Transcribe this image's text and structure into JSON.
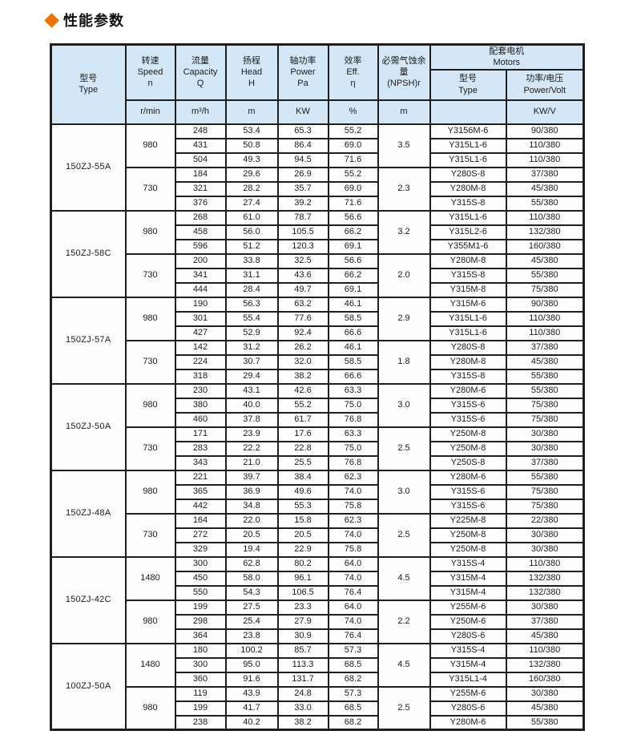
{
  "page_title": {
    "text": "性能参数"
  },
  "colors": {
    "accent": "#ee7200",
    "header_bg": "#d4e7f6",
    "border": "#1e1e1e"
  },
  "table": {
    "headers": {
      "model": {
        "zh": "型号",
        "en": "Type"
      },
      "speed": {
        "zh": "转速",
        "en": "Speed",
        "sub": "n",
        "unit": "r/min"
      },
      "capacity": {
        "zh": "流量",
        "en": "Capacity",
        "sub": "Q",
        "unit": "m³/h"
      },
      "head": {
        "zh": "扬程",
        "en": "Head",
        "sub": "H",
        "unit": "m"
      },
      "power": {
        "zh": "轴功率",
        "en": "Power",
        "sub": "Pa",
        "unit": "KW"
      },
      "eff": {
        "zh": "效率",
        "en": "Eff.",
        "sub": "η",
        "unit": "%"
      },
      "npsh": {
        "zh": "必需气蚀余量",
        "en": "(NPSH)r",
        "unit": "m"
      },
      "motors": {
        "zh": "配套电机",
        "en": "Motors"
      },
      "motor_type": {
        "zh": "型号",
        "en": "Type",
        "unit": ""
      },
      "motor_pv": {
        "zh": "功率/电压",
        "en": "Power/Volt",
        "unit": "KW/V"
      }
    },
    "sections": [
      {
        "model": "150ZJ-55A",
        "speed_groups": [
          {
            "speed": "980",
            "npsh": "3.5",
            "rows": [
              {
                "capacity": "248",
                "head": "53.4",
                "power": "65.3",
                "eff": "55.2",
                "motor": "Y3156M-6",
                "pv": "90/380"
              },
              {
                "capacity": "431",
                "head": "50.8",
                "power": "86.4",
                "eff": "69.0",
                "motor": "Y315L1-6",
                "pv": "110/380"
              },
              {
                "capacity": "504",
                "head": "49.3",
                "power": "94.5",
                "eff": "71.6",
                "motor": "Y315L1-6",
                "pv": "110/380"
              }
            ]
          },
          {
            "speed": "730",
            "npsh": "2.3",
            "rows": [
              {
                "capacity": "184",
                "head": "29.6",
                "power": "26.9",
                "eff": "55.2",
                "motor": "Y280S-8",
                "pv": "37/380"
              },
              {
                "capacity": "321",
                "head": "28.2",
                "power": "35.7",
                "eff": "69.0",
                "motor": "Y280M-8",
                "pv": "45/380"
              },
              {
                "capacity": "376",
                "head": "27.4",
                "power": "39.2",
                "eff": "71.6",
                "motor": "Y315S-8",
                "pv": "55/380"
              }
            ]
          }
        ]
      },
      {
        "model": "150ZJ-58C",
        "speed_groups": [
          {
            "speed": "980",
            "npsh": "3.2",
            "rows": [
              {
                "capacity": "268",
                "head": "61.0",
                "power": "78.7",
                "eff": "56.6",
                "motor": "Y315L1-6",
                "pv": "110/380"
              },
              {
                "capacity": "458",
                "head": "56.0",
                "power": "105.5",
                "eff": "66.2",
                "motor": "Y315L2-6",
                "pv": "132/380"
              },
              {
                "capacity": "596",
                "head": "51.2",
                "power": "120.3",
                "eff": "69.1",
                "motor": "Y355M1-6",
                "pv": "160/380"
              }
            ]
          },
          {
            "speed": "730",
            "npsh": "2.0",
            "rows": [
              {
                "capacity": "200",
                "head": "33.8",
                "power": "32.5",
                "eff": "56.6",
                "motor": "Y280M-8",
                "pv": "45/380"
              },
              {
                "capacity": "341",
                "head": "31.1",
                "power": "43.6",
                "eff": "66.2",
                "motor": "Y315S-8",
                "pv": "55/380"
              },
              {
                "capacity": "444",
                "head": "28.4",
                "power": "49.7",
                "eff": "69.1",
                "motor": "Y315M-8",
                "pv": "75/380"
              }
            ]
          }
        ]
      },
      {
        "model": "150ZJ-57A",
        "speed_groups": [
          {
            "speed": "980",
            "npsh": "2.9",
            "rows": [
              {
                "capacity": "190",
                "head": "56.3",
                "power": "63.2",
                "eff": "46.1",
                "motor": "Y315M-6",
                "pv": "90/380"
              },
              {
                "capacity": "301",
                "head": "55.4",
                "power": "77.6",
                "eff": "58.5",
                "motor": "Y315L1-6",
                "pv": "110/380"
              },
              {
                "capacity": "427",
                "head": "52.9",
                "power": "92.4",
                "eff": "66.6",
                "motor": "Y315L1-6",
                "pv": "110/380"
              }
            ]
          },
          {
            "speed": "730",
            "npsh": "1.8",
            "rows": [
              {
                "capacity": "142",
                "head": "31.2",
                "power": "26.2",
                "eff": "46.1",
                "motor": "Y280S-8",
                "pv": "37/380"
              },
              {
                "capacity": "224",
                "head": "30.7",
                "power": "32.0",
                "eff": "58.5",
                "motor": "Y280M-8",
                "pv": "45/380"
              },
              {
                "capacity": "318",
                "head": "29.4",
                "power": "38.2",
                "eff": "66.6",
                "motor": "Y315S-8",
                "pv": "55/380"
              }
            ]
          }
        ]
      },
      {
        "model": "150ZJ-50A",
        "speed_groups": [
          {
            "speed": "980",
            "npsh": "3.0",
            "rows": [
              {
                "capacity": "230",
                "head": "43.1",
                "power": "42.6",
                "eff": "63.3",
                "motor": "Y280M-6",
                "pv": "55/380"
              },
              {
                "capacity": "380",
                "head": "40.0",
                "power": "55.2",
                "eff": "75.0",
                "motor": "Y315S-6",
                "pv": "75/380"
              },
              {
                "capacity": "460",
                "head": "37.8",
                "power": "61.7",
                "eff": "76.8",
                "motor": "Y315S-6",
                "pv": "75/380"
              }
            ]
          },
          {
            "speed": "730",
            "npsh": "2.5",
            "rows": [
              {
                "capacity": "171",
                "head": "23.9",
                "power": "17.6",
                "eff": "63.3",
                "motor": "Y250M-8",
                "pv": "30/380"
              },
              {
                "capacity": "283",
                "head": "22.2",
                "power": "22.8",
                "eff": "75.0",
                "motor": "Y250M-8",
                "pv": "30/380"
              },
              {
                "capacity": "343",
                "head": "21.0",
                "power": "25.5",
                "eff": "76.8",
                "motor": "Y250S-8",
                "pv": "37/380"
              }
            ]
          }
        ]
      },
      {
        "model": "150ZJ-48A",
        "speed_groups": [
          {
            "speed": "980",
            "npsh": "3.0",
            "rows": [
              {
                "capacity": "221",
                "head": "39.7",
                "power": "38.4",
                "eff": "62.3",
                "motor": "Y280M-6",
                "pv": "55/380"
              },
              {
                "capacity": "365",
                "head": "36.9",
                "power": "49.6",
                "eff": "74.0",
                "motor": "Y315S-6",
                "pv": "75/380"
              },
              {
                "capacity": "442",
                "head": "34.8",
                "power": "55.3",
                "eff": "75.8",
                "motor": "Y315S-6",
                "pv": "75/380"
              }
            ]
          },
          {
            "speed": "730",
            "npsh": "2.5",
            "rows": [
              {
                "capacity": "164",
                "head": "22.0",
                "power": "15.8",
                "eff": "62.3",
                "motor": "Y225M-8",
                "pv": "22/380"
              },
              {
                "capacity": "272",
                "head": "20.5",
                "power": "20.5",
                "eff": "74.0",
                "motor": "Y250M-8",
                "pv": "30/380"
              },
              {
                "capacity": "329",
                "head": "19.4",
                "power": "22.9",
                "eff": "75.8",
                "motor": "Y250M-8",
                "pv": "30/380"
              }
            ]
          }
        ]
      },
      {
        "model": "150ZJ-42C",
        "speed_groups": [
          {
            "speed": "1480",
            "npsh": "4.5",
            "rows": [
              {
                "capacity": "300",
                "head": "62.8",
                "power": "80.2",
                "eff": "64.0",
                "motor": "Y315S-4",
                "pv": "110/380"
              },
              {
                "capacity": "450",
                "head": "58.0",
                "power": "96.1",
                "eff": "74.0",
                "motor": "Y315M-4",
                "pv": "132/380"
              },
              {
                "capacity": "550",
                "head": "54.3",
                "power": "106.5",
                "eff": "76.4",
                "motor": "Y315M-4",
                "pv": "132/380"
              }
            ]
          },
          {
            "speed": "980",
            "npsh": "2.2",
            "rows": [
              {
                "capacity": "199",
                "head": "27.5",
                "power": "23.3",
                "eff": "64.0",
                "motor": "Y255M-6",
                "pv": "30/380"
              },
              {
                "capacity": "298",
                "head": "25.4",
                "power": "27.9",
                "eff": "74.0",
                "motor": "Y250M-6",
                "pv": "37/380"
              },
              {
                "capacity": "364",
                "head": "23.8",
                "power": "30.9",
                "eff": "76.4",
                "motor": "Y280S-6",
                "pv": "45/380"
              }
            ]
          }
        ]
      },
      {
        "model": "100ZJ-50A",
        "speed_groups": [
          {
            "speed": "1480",
            "npsh": "4.5",
            "rows": [
              {
                "capacity": "180",
                "head": "100.2",
                "power": "85.7",
                "eff": "57.3",
                "motor": "Y315S-4",
                "pv": "110/380"
              },
              {
                "capacity": "300",
                "head": "95.0",
                "power": "113.3",
                "eff": "68.5",
                "motor": "Y315M-4",
                "pv": "132/380"
              },
              {
                "capacity": "360",
                "head": "91.6",
                "power": "131.7",
                "eff": "68.2",
                "motor": "Y315L1-4",
                "pv": "160/380"
              }
            ]
          },
          {
            "speed": "980",
            "npsh": "2.5",
            "rows": [
              {
                "capacity": "119",
                "head": "43.9",
                "power": "24.8",
                "eff": "57.3",
                "motor": "Y255M-6",
                "pv": "30/380"
              },
              {
                "capacity": "199",
                "head": "41.7",
                "power": "33.0",
                "eff": "68.5",
                "motor": "Y280S-6",
                "pv": "45/380"
              },
              {
                "capacity": "238",
                "head": "40.2",
                "power": "38.2",
                "eff": "68.2",
                "motor": "Y280M-6",
                "pv": "55/380"
              }
            ]
          }
        ]
      }
    ]
  }
}
